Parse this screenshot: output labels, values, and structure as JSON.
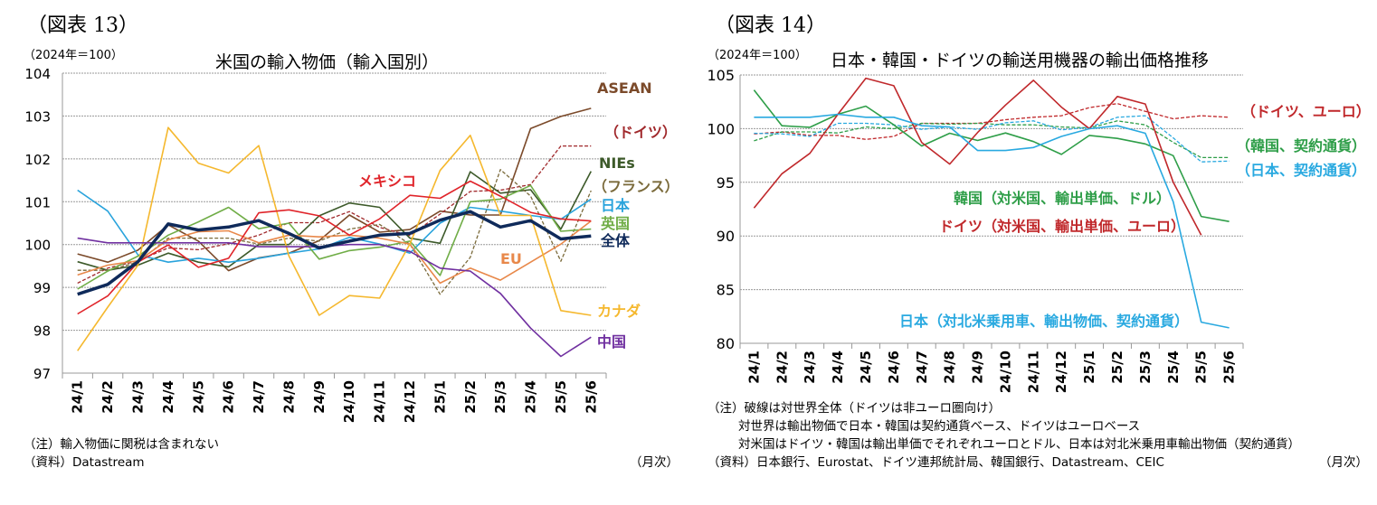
{
  "chart_data": [
    {
      "type": "line",
      "figure_label": "（図表 13）",
      "title": "米国の輸入物価（輸入国別）",
      "ylabel": "（2024年＝100）",
      "xlabel": "（月次）",
      "ylim": [
        97,
        104
      ],
      "yticks": [
        97,
        98,
        99,
        100,
        101,
        102,
        103,
        104
      ],
      "grid": true,
      "categories": [
        "24/1",
        "24/2",
        "24/3",
        "24/4",
        "24/5",
        "24/6",
        "24/7",
        "24/8",
        "24/9",
        "24/10",
        "24/11",
        "24/12",
        "25/1",
        "25/2",
        "25/3",
        "25/4",
        "25/5",
        "25/6"
      ],
      "series": [
        {
          "name": "ASEAN",
          "color": "#7b4a2a",
          "dashed": false,
          "values": [
            99.78,
            99.59,
            99.87,
            100.46,
            100.08,
            99.39,
            99.69,
            99.8,
            100.09,
            100.69,
            100.29,
            100.35,
            100.78,
            100.69,
            100.69,
            102.71,
            102.99,
            103.18
          ]
        },
        {
          "name": "（ドイツ）",
          "color": "#a0282b",
          "dashed": true,
          "values": [
            99.1,
            99.45,
            99.62,
            99.92,
            99.88,
            100.02,
            100.22,
            100.51,
            100.51,
            100.77,
            100.4,
            100.21,
            100.71,
            101.24,
            101.27,
            101.4,
            102.3,
            102.3
          ]
        },
        {
          "name": "NIEs",
          "color": "#3d5a2a",
          "dashed": false,
          "values": [
            99.6,
            99.4,
            99.52,
            99.8,
            99.59,
            99.48,
            100.0,
            100.0,
            100.67,
            100.97,
            100.87,
            100.15,
            100.03,
            101.7,
            101.2,
            101.28,
            100.36,
            101.71
          ]
        },
        {
          "name": "（フランス）",
          "color": "#7a6a3a",
          "dashed": true,
          "values": [
            99.4,
            99.4,
            99.59,
            100.15,
            100.15,
            100.15,
            100.01,
            100.15,
            100.08,
            100.36,
            100.47,
            100.01,
            98.84,
            99.7,
            101.75,
            101.13,
            99.61,
            101.26
          ]
        },
        {
          "name": "日本",
          "color": "#29a3dc",
          "dashed": false,
          "values": [
            101.27,
            100.78,
            99.76,
            99.59,
            99.68,
            99.59,
            99.68,
            99.8,
            99.9,
            100.17,
            100.01,
            99.8,
            100.5,
            100.87,
            100.78,
            100.68,
            100.59,
            101.06
          ]
        },
        {
          "name": "英国",
          "color": "#70ad47",
          "dashed": false,
          "values": [
            98.96,
            99.38,
            99.73,
            100.22,
            100.53,
            100.87,
            100.37,
            100.5,
            99.66,
            99.86,
            99.94,
            100.08,
            99.28,
            101.0,
            101.06,
            101.38,
            100.31,
            100.36
          ]
        },
        {
          "name": "EU",
          "color": "#e8884a",
          "dashed": false,
          "values": [
            99.29,
            99.52,
            99.62,
            100.11,
            100.3,
            100.32,
            100.04,
            100.22,
            100.18,
            100.22,
            100.15,
            100.01,
            99.1,
            99.45,
            99.17,
            99.59,
            100.01,
            100.55
          ]
        },
        {
          "name": "カナダ",
          "color": "#f5b82e",
          "dashed": false,
          "values": [
            97.52,
            98.54,
            99.52,
            102.73,
            101.9,
            101.67,
            102.31,
            99.73,
            98.35,
            98.81,
            98.75,
            100.01,
            101.73,
            102.55,
            100.68,
            100.68,
            98.46,
            98.35
          ]
        },
        {
          "name": "中国",
          "color": "#7030a0",
          "dashed": false,
          "values": [
            100.15,
            100.04,
            100.04,
            100.04,
            100.04,
            100.04,
            99.95,
            99.95,
            99.95,
            100.0,
            100.0,
            99.84,
            99.45,
            99.38,
            98.86,
            98.05,
            97.39,
            97.84
          ]
        },
        {
          "name": "メキシコ",
          "color": "#e0242a",
          "dashed": false,
          "values": [
            98.38,
            98.8,
            99.59,
            99.99,
            99.47,
            99.68,
            100.74,
            100.81,
            100.67,
            100.22,
            100.6,
            101.15,
            101.08,
            101.48,
            101.13,
            100.75,
            100.6,
            100.55
          ]
        },
        {
          "name": "全体",
          "color": "#0f2a5a",
          "dashed": false,
          "bold": true,
          "values": [
            98.84,
            99.07,
            99.6,
            100.48,
            100.34,
            100.41,
            100.56,
            100.26,
            99.92,
            100.08,
            100.22,
            100.26,
            100.57,
            100.77,
            100.41,
            100.56,
            100.13,
            100.2
          ]
        }
      ],
      "notes": [
        "（注）輸入物価に関税は含まれない",
        "（資料）Datastream"
      ]
    },
    {
      "type": "line",
      "figure_label": "（図表 14）",
      "title": "日本・韓国・ドイツの輸送用機器の輸出価格推移",
      "ylabel": "（2024年＝100）",
      "xlabel": "（月次）",
      "ylim": [
        80,
        105
      ],
      "yticks": [
        80,
        85,
        90,
        95,
        100,
        105
      ],
      "grid": true,
      "categories": [
        "24/1",
        "24/2",
        "24/3",
        "24/4",
        "24/5",
        "24/6",
        "24/7",
        "24/8",
        "24/9",
        "24/10",
        "24/11",
        "24/12",
        "25/1",
        "25/2",
        "25/3",
        "25/4",
        "25/5",
        "25/6"
      ],
      "series": [
        {
          "name": "（ドイツ、ユーロ）",
          "color": "#c0282b",
          "dashed": true,
          "values": [
            99.51,
            99.7,
            99.37,
            99.37,
            99.0,
            99.28,
            100.5,
            100.5,
            100.5,
            100.83,
            101.06,
            101.2,
            101.96,
            102.33,
            101.62,
            100.92,
            101.2,
            101.06
          ]
        },
        {
          "name": "（韓国、契約通貨）",
          "color": "#2e9e48",
          "dashed": true,
          "values": [
            98.86,
            99.7,
            99.7,
            99.6,
            100.16,
            99.99,
            100.5,
            100.41,
            100.5,
            100.35,
            100.35,
            100.16,
            100.07,
            100.72,
            100.35,
            98.72,
            97.31,
            97.31
          ]
        },
        {
          "name": "（日本、契約通貨）",
          "color": "#29a9e0",
          "dashed": true,
          "values": [
            99.57,
            99.51,
            99.28,
            100.5,
            100.5,
            100.35,
            99.93,
            100.16,
            99.93,
            100.55,
            100.72,
            99.88,
            100.13,
            101.06,
            101.2,
            99.14,
            96.9,
            96.98
          ]
        },
        {
          "name": "韓国（対米国、輸出単価、ドル）",
          "color": "#2e9e48",
          "dashed": false,
          "values": [
            103.6,
            100.27,
            100.13,
            101.34,
            102.1,
            100.35,
            98.38,
            99.57,
            98.9,
            99.6,
            98.8,
            97.6,
            99.37,
            99.09,
            98.58,
            97.48,
            91.82,
            91.35
          ]
        },
        {
          "name": "ドイツ（対米国、輸出単価、ユーロ）",
          "color": "#c0282b",
          "dashed": false,
          "values": [
            92.6,
            95.8,
            97.7,
            101.34,
            104.7,
            104.0,
            98.7,
            96.7,
            99.65,
            102.2,
            104.5,
            102.0,
            100.0,
            103.0,
            102.3,
            95.0,
            90.08,
            null
          ]
        },
        {
          "name": "日本（対北米乗用車、輸出物価、契約通貨）",
          "color": "#29a9e0",
          "dashed": false,
          "values": [
            101.06,
            101.06,
            101.06,
            101.34,
            101.06,
            101.06,
            100.27,
            100.16,
            97.96,
            97.96,
            98.24,
            99.28,
            99.99,
            100.27,
            99.57,
            93.18,
            81.97,
            81.44
          ]
        }
      ],
      "notes": [
        "（注）破線は対世界全体（ドイツは非ユーロ圏向け）",
        "対世界は輸出物価で日本・韓国は契約通貨ベース、ドイツはユーロベース",
        "対米国はドイツ・韓国は輸出単価でそれぞれユーロとドル、日本は対北米乗用車輸出物価（契約通貨）",
        "（資料）日本銀行、Eurostat、ドイツ連邦統計局、韓国銀行、Datastream、CEIC"
      ]
    }
  ]
}
